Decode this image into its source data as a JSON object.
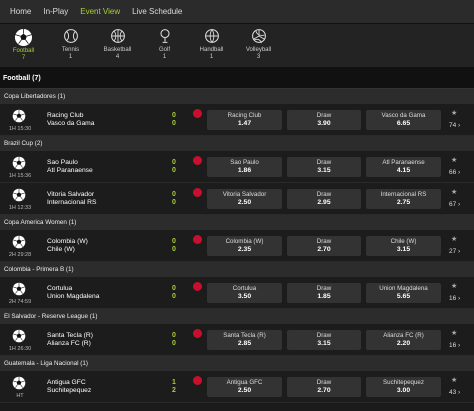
{
  "nav": {
    "items": [
      "Home",
      "In-Play",
      "Event View",
      "Live Schedule"
    ],
    "active": "Event View"
  },
  "sports": [
    {
      "name": "Football",
      "count": "7",
      "icon": "football-icon",
      "active": true
    },
    {
      "name": "Tennis",
      "count": "1",
      "icon": "tennis-icon"
    },
    {
      "name": "Basketball",
      "count": "4",
      "icon": "basketball-icon"
    },
    {
      "name": "Golf",
      "count": "1",
      "icon": "golf-icon"
    },
    {
      "name": "Handball",
      "count": "1",
      "icon": "handball-icon"
    },
    {
      "name": "Volleyball",
      "count": "3",
      "icon": "volleyball-icon"
    }
  ],
  "section": {
    "title": "Football (7)"
  },
  "competitions": [
    {
      "name": "Copa Libertadores (1)",
      "matches": [
        {
          "home": "Racing Club",
          "away": "Vasco da Gama",
          "score_home": "0",
          "score_away": "0",
          "time": "1H 15:30",
          "odds": [
            {
              "label": "Racing Club",
              "value": "1.47"
            },
            {
              "label": "Draw",
              "value": "3.90"
            },
            {
              "label": "Vasco da Gama",
              "value": "6.65"
            }
          ],
          "more": "74 ›"
        }
      ]
    },
    {
      "name": "Brazil Cup (2)",
      "matches": [
        {
          "home": "Sao Paulo",
          "away": "Atl Paranaense",
          "score_home": "0",
          "score_away": "0",
          "time": "1H 15:36",
          "odds": [
            {
              "label": "Sao Paulo",
              "value": "1.86"
            },
            {
              "label": "Draw",
              "value": "3.15"
            },
            {
              "label": "Atl Paranaense",
              "value": "4.15"
            }
          ],
          "more": "66 ›"
        },
        {
          "home": "Vitoria Salvador",
          "away": "Internacional RS",
          "score_home": "0",
          "score_away": "0",
          "time": "1H 12:33",
          "odds": [
            {
              "label": "Vitoria Salvador",
              "value": "2.50"
            },
            {
              "label": "Draw",
              "value": "2.95"
            },
            {
              "label": "Internacional RS",
              "value": "2.75"
            }
          ],
          "more": "67 ›"
        }
      ]
    },
    {
      "name": "Copa America Women (1)",
      "matches": [
        {
          "home": "Colombia (W)",
          "away": "Chile (W)",
          "score_home": "0",
          "score_away": "0",
          "time": "2H 29:28",
          "odds": [
            {
              "label": "Colombia (W)",
              "value": "2.35"
            },
            {
              "label": "Draw",
              "value": "2.70"
            },
            {
              "label": "Chile (W)",
              "value": "3.15"
            }
          ],
          "more": "27 ›"
        }
      ]
    },
    {
      "name": "Colombia - Primera B (1)",
      "matches": [
        {
          "home": "Cortulua",
          "away": "Union Magdalena",
          "score_home": "0",
          "score_away": "0",
          "time": "2H 74:59",
          "odds": [
            {
              "label": "Cortulua",
              "value": "3.50"
            },
            {
              "label": "Draw",
              "value": "1.85"
            },
            {
              "label": "Union Magdalena",
              "value": "5.65"
            }
          ],
          "more": "16 ›"
        }
      ]
    },
    {
      "name": "El Salvador - Reserve League (1)",
      "matches": [
        {
          "home": "Santa Tecla (R)",
          "away": "Alianza FC (R)",
          "score_home": "0",
          "score_away": "0",
          "time": "1H 26:30",
          "odds": [
            {
              "label": "Santa Tecla (R)",
              "value": "2.85"
            },
            {
              "label": "Draw",
              "value": "3.15"
            },
            {
              "label": "Alianza FC (R)",
              "value": "2.20"
            }
          ],
          "more": "16 ›"
        }
      ]
    },
    {
      "name": "Guatemala - Liga Nacional (1)",
      "matches": [
        {
          "home": "Antigua GFC",
          "away": "Suchitepequez",
          "score_home": "1",
          "score_away": "2",
          "time": "HT",
          "odds": [
            {
              "label": "Antigua GFC",
              "value": "2.50"
            },
            {
              "label": "Draw",
              "value": "2.70"
            },
            {
              "label": "Suchitepequez",
              "value": "3.00"
            }
          ],
          "more": "43 ›"
        }
      ]
    }
  ],
  "colors": {
    "accent": "#a8ce3a",
    "live": "#c8102e",
    "bg": "#1b1b1b"
  }
}
